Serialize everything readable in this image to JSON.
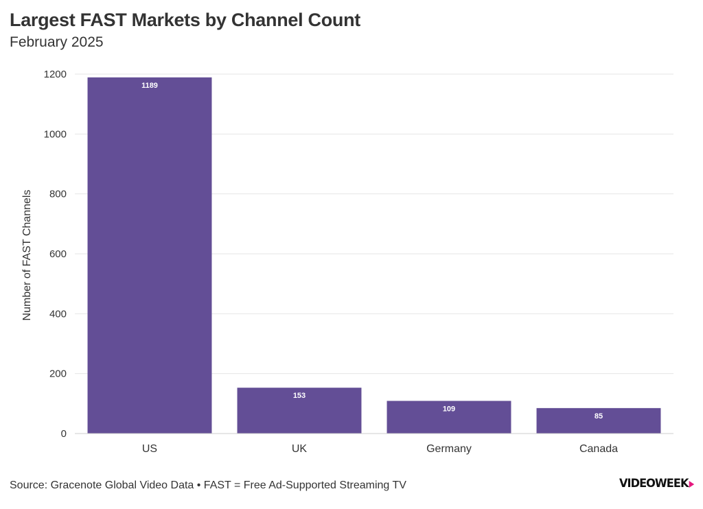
{
  "header": {
    "title": "Largest FAST Markets by Channel Count",
    "subtitle": "February 2025"
  },
  "footer": {
    "source": "Source: Gracenote Global Video Data • FAST = Free Ad-Supported Streaming TV",
    "logo_text": "VIDEOWEEK"
  },
  "colors": {
    "bar": "#634e96",
    "grid": "#e6e6e6",
    "text": "#333333",
    "logo_accent": "#e5197f"
  },
  "chart_data": {
    "type": "bar",
    "title": "Largest FAST Markets by Channel Count",
    "subtitle": "February 2025",
    "categories": [
      "US",
      "UK",
      "Germany",
      "Canada"
    ],
    "values": [
      1189,
      153,
      109,
      85
    ],
    "data_labels": [
      "1189",
      "153",
      "109",
      "85"
    ],
    "xlabel": "",
    "ylabel": "Number of FAST Channels",
    "ylim": [
      0,
      1200
    ],
    "yticks": [
      0,
      200,
      400,
      600,
      800,
      1000,
      1200
    ],
    "grid": true,
    "legend": "none"
  }
}
